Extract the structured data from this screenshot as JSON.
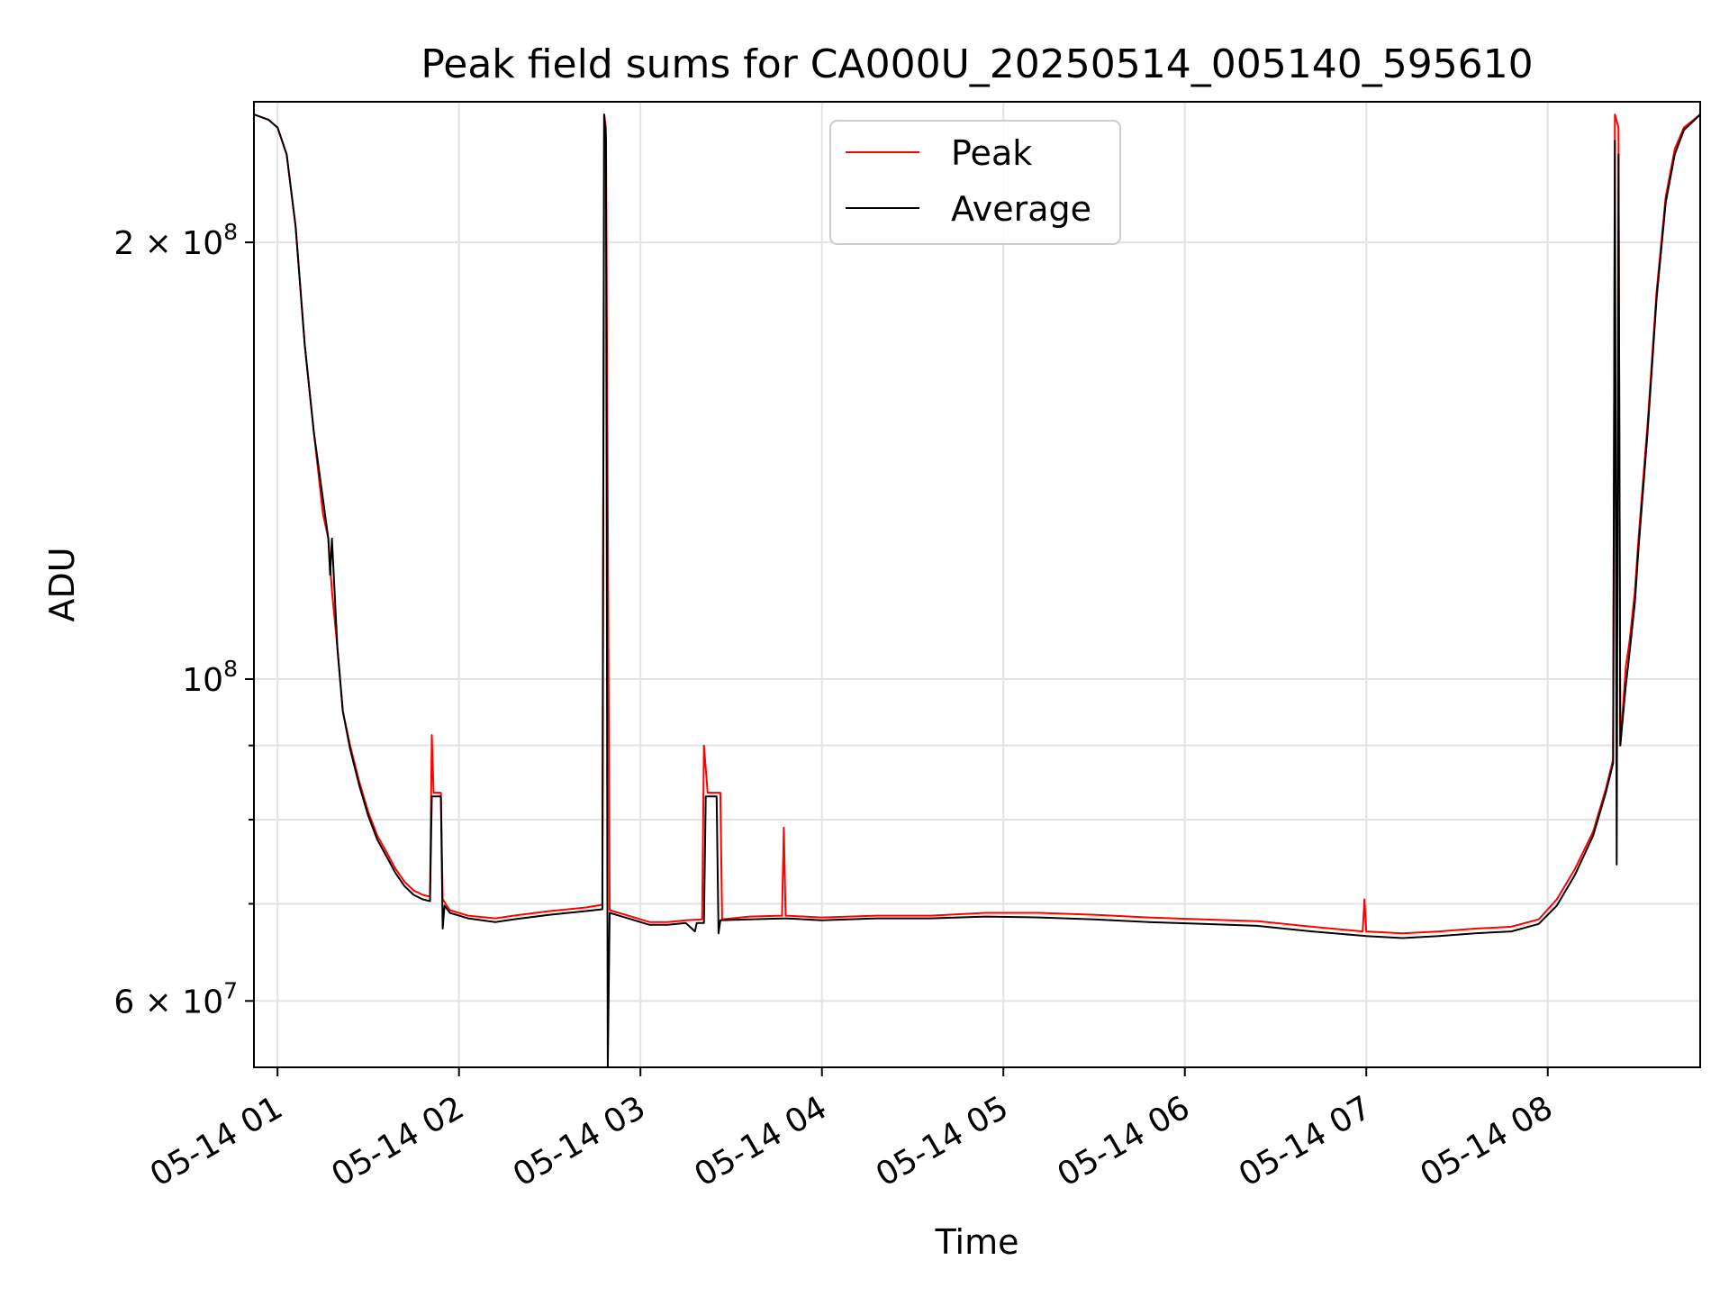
{
  "chart_data": {
    "type": "line",
    "title": "Peak field sums for CA000U_20250514_005140_595610",
    "xlabel": "Time",
    "ylabel": "ADU",
    "yscale": "log",
    "ylim": [
      54000000,
      250000000
    ],
    "xlim_hours": [
      0.87,
      8.84
    ],
    "grid": true,
    "legend_position": "upper-center",
    "x_ticks": [
      {
        "hour": 1,
        "label": "05-14 01"
      },
      {
        "hour": 2,
        "label": "05-14 02"
      },
      {
        "hour": 3,
        "label": "05-14 03"
      },
      {
        "hour": 4,
        "label": "05-14 04"
      },
      {
        "hour": 5,
        "label": "05-14 05"
      },
      {
        "hour": 6,
        "label": "05-14 06"
      },
      {
        "hour": 7,
        "label": "05-14 07"
      },
      {
        "hour": 8,
        "label": "05-14 08"
      }
    ],
    "y_major_ticks": [
      {
        "value": 60000000,
        "mantissa": "6",
        "exponent": "7",
        "label": "6 × 10^7"
      },
      {
        "value": 100000000,
        "mantissa": "",
        "exponent": "8",
        "label": "10^8"
      },
      {
        "value": 200000000,
        "mantissa": "2",
        "exponent": "8",
        "label": "2 × 10^8"
      }
    ],
    "y_minor_ticks": [
      70000000,
      80000000,
      90000000
    ],
    "series": [
      {
        "name": "Peak",
        "color": "#ff0000",
        "points": [
          [
            0.87,
            245000000
          ],
          [
            0.95,
            243000000
          ],
          [
            1.0,
            240000000
          ],
          [
            1.05,
            230000000
          ],
          [
            1.1,
            205000000
          ],
          [
            1.15,
            170000000
          ],
          [
            1.2,
            148000000
          ],
          [
            1.25,
            130000000
          ],
          [
            1.28,
            125000000
          ],
          [
            1.3,
            115000000
          ],
          [
            1.33,
            105000000
          ],
          [
            1.36,
            95000000
          ],
          [
            1.4,
            90000000
          ],
          [
            1.45,
            85000000
          ],
          [
            1.5,
            81000000
          ],
          [
            1.55,
            78000000
          ],
          [
            1.6,
            76000000
          ],
          [
            1.65,
            74000000
          ],
          [
            1.7,
            72500000
          ],
          [
            1.75,
            71500000
          ],
          [
            1.8,
            71000000
          ],
          [
            1.84,
            70800000
          ],
          [
            1.85,
            91500000
          ],
          [
            1.86,
            83500000
          ],
          [
            1.9,
            83500000
          ],
          [
            1.91,
            70500000
          ],
          [
            1.95,
            69300000
          ],
          [
            2.05,
            68700000
          ],
          [
            2.2,
            68400000
          ],
          [
            2.3,
            68700000
          ],
          [
            2.5,
            69200000
          ],
          [
            2.7,
            69600000
          ],
          [
            2.79,
            69900000
          ],
          [
            2.8,
            245000000
          ],
          [
            2.81,
            240000000
          ],
          [
            2.83,
            69300000
          ],
          [
            2.95,
            68600000
          ],
          [
            3.05,
            68000000
          ],
          [
            3.15,
            68000000
          ],
          [
            3.25,
            68200000
          ],
          [
            3.34,
            68300000
          ],
          [
            3.35,
            90000000
          ],
          [
            3.37,
            83500000
          ],
          [
            3.44,
            83500000
          ],
          [
            3.45,
            68300000
          ],
          [
            3.6,
            68600000
          ],
          [
            3.78,
            68700000
          ],
          [
            3.79,
            79000000
          ],
          [
            3.8,
            68700000
          ],
          [
            4.0,
            68500000
          ],
          [
            4.3,
            68700000
          ],
          [
            4.6,
            68700000
          ],
          [
            4.9,
            69000000
          ],
          [
            5.2,
            69000000
          ],
          [
            5.5,
            68800000
          ],
          [
            5.8,
            68500000
          ],
          [
            6.1,
            68300000
          ],
          [
            6.4,
            68100000
          ],
          [
            6.7,
            67500000
          ],
          [
            6.98,
            67000000
          ],
          [
            6.99,
            70500000
          ],
          [
            7.0,
            67000000
          ],
          [
            7.2,
            66800000
          ],
          [
            7.4,
            67000000
          ],
          [
            7.6,
            67300000
          ],
          [
            7.8,
            67500000
          ],
          [
            7.95,
            68300000
          ],
          [
            8.05,
            70500000
          ],
          [
            8.15,
            74000000
          ],
          [
            8.25,
            78500000
          ],
          [
            8.32,
            84000000
          ],
          [
            8.36,
            88000000
          ],
          [
            8.37,
            245000000
          ],
          [
            8.39,
            240000000
          ],
          [
            8.4,
            90000000
          ],
          [
            8.43,
            102000000
          ],
          [
            8.45,
            106000000
          ],
          [
            8.48,
            115000000
          ],
          [
            8.5,
            125000000
          ],
          [
            8.55,
            150000000
          ],
          [
            8.6,
            185000000
          ],
          [
            8.65,
            215000000
          ],
          [
            8.7,
            232000000
          ],
          [
            8.75,
            240000000
          ],
          [
            8.84,
            245000000
          ]
        ]
      },
      {
        "name": "Average",
        "color": "#000000",
        "points": [
          [
            0.87,
            245000000
          ],
          [
            0.95,
            243000000
          ],
          [
            1.0,
            240000000
          ],
          [
            1.05,
            230000000
          ],
          [
            1.1,
            205000000
          ],
          [
            1.15,
            170000000
          ],
          [
            1.2,
            148000000
          ],
          [
            1.28,
            125000000
          ],
          [
            1.29,
            118000000
          ],
          [
            1.3,
            125000000
          ],
          [
            1.33,
            105000000
          ],
          [
            1.36,
            95000000
          ],
          [
            1.4,
            89500000
          ],
          [
            1.45,
            84500000
          ],
          [
            1.5,
            80500000
          ],
          [
            1.55,
            77500000
          ],
          [
            1.6,
            75500000
          ],
          [
            1.65,
            73500000
          ],
          [
            1.7,
            72000000
          ],
          [
            1.75,
            71000000
          ],
          [
            1.8,
            70500000
          ],
          [
            1.84,
            70300000
          ],
          [
            1.85,
            83000000
          ],
          [
            1.9,
            83000000
          ],
          [
            1.91,
            67300000
          ],
          [
            1.92,
            69800000
          ],
          [
            1.95,
            69000000
          ],
          [
            2.05,
            68400000
          ],
          [
            2.2,
            68000000
          ],
          [
            2.3,
            68300000
          ],
          [
            2.5,
            68800000
          ],
          [
            2.7,
            69200000
          ],
          [
            2.79,
            69400000
          ],
          [
            2.8,
            245000000
          ],
          [
            2.81,
            235000000
          ],
          [
            2.82,
            54000000
          ],
          [
            2.83,
            69000000
          ],
          [
            2.95,
            68300000
          ],
          [
            3.05,
            67700000
          ],
          [
            3.15,
            67700000
          ],
          [
            3.25,
            67900000
          ],
          [
            3.3,
            67000000
          ],
          [
            3.31,
            67900000
          ],
          [
            3.35,
            67900000
          ],
          [
            3.36,
            83000000
          ],
          [
            3.42,
            83000000
          ],
          [
            3.43,
            66800000
          ],
          [
            3.44,
            68200000
          ],
          [
            3.6,
            68300000
          ],
          [
            3.8,
            68400000
          ],
          [
            4.0,
            68200000
          ],
          [
            4.3,
            68400000
          ],
          [
            4.6,
            68400000
          ],
          [
            4.9,
            68600000
          ],
          [
            5.2,
            68500000
          ],
          [
            5.5,
            68300000
          ],
          [
            5.8,
            68000000
          ],
          [
            6.1,
            67800000
          ],
          [
            6.4,
            67600000
          ],
          [
            6.7,
            67000000
          ],
          [
            7.0,
            66500000
          ],
          [
            7.2,
            66300000
          ],
          [
            7.4,
            66500000
          ],
          [
            7.6,
            66800000
          ],
          [
            7.8,
            67000000
          ],
          [
            7.95,
            67800000
          ],
          [
            8.05,
            69800000
          ],
          [
            8.15,
            73300000
          ],
          [
            8.25,
            78000000
          ],
          [
            8.32,
            83500000
          ],
          [
            8.36,
            87500000
          ],
          [
            8.37,
            235000000
          ],
          [
            8.38,
            74500000
          ],
          [
            8.39,
            230000000
          ],
          [
            8.4,
            90000000
          ],
          [
            8.43,
            99000000
          ],
          [
            8.45,
            104000000
          ],
          [
            8.48,
            113000000
          ],
          [
            8.5,
            123000000
          ],
          [
            8.55,
            148000000
          ],
          [
            8.6,
            183000000
          ],
          [
            8.65,
            213000000
          ],
          [
            8.7,
            230000000
          ],
          [
            8.75,
            239000000
          ],
          [
            8.84,
            245000000
          ]
        ]
      }
    ]
  }
}
